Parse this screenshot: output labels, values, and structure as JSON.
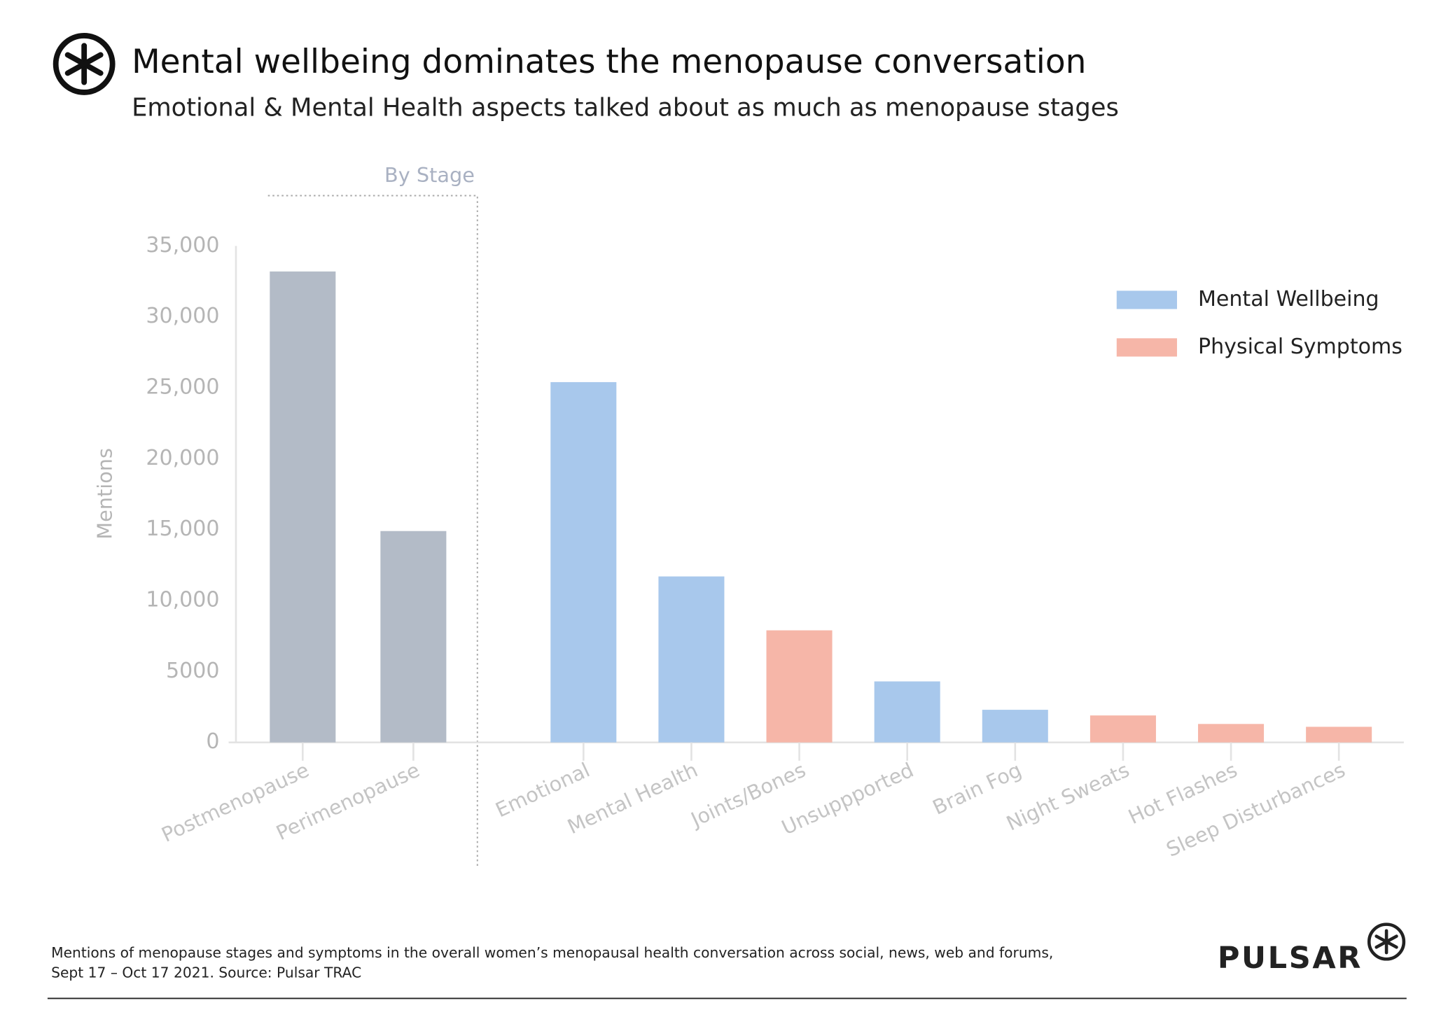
{
  "chart_data": {
    "type": "bar",
    "title": "Mental wellbeing dominates the menopause conversation",
    "subtitle": "Emotional & Mental Health aspects talked about as much as menopause stages",
    "y_label": "Mentions",
    "annotation": "By Stage",
    "categories": [
      "Postmenopause",
      "Perimenopause",
      "Emotional",
      "Mental Health",
      "Joints/Bones",
      "Unsuppported",
      "Brain Fog",
      "Night Sweats",
      "Hot Flashes",
      "Sleep Disturbances"
    ],
    "values": [
      33200,
      14900,
      25400,
      11700,
      7900,
      4300,
      2300,
      1900,
      1300,
      1100
    ],
    "colors": [
      "#b3bbc7",
      "#b3bbc7",
      "#a8c8ec",
      "#a8c8ec",
      "#f6b6a8",
      "#a8c8ec",
      "#a8c8ec",
      "#f6b6a8",
      "#f6b6a8",
      "#f6b6a8"
    ],
    "legend": [
      {
        "name": "Mental Wellbeing",
        "color": "#a8c8ec"
      },
      {
        "name": "Physical Symptoms",
        "color": "#f6b6a8"
      }
    ],
    "ylim": [
      0,
      35000
    ],
    "yticks": [
      0,
      5000,
      {
        "value": 10000,
        "label": "10,000"
      },
      {
        "value": 15000,
        "label": "15,000"
      },
      {
        "value": 20000,
        "label": "20,000"
      },
      {
        "value": 25000,
        "label": "25,000"
      },
      {
        "value": 30000,
        "label": "30,000"
      },
      {
        "value": 35000,
        "label": "35,000"
      }
    ],
    "footnote": [
      "Mentions of menopause stages and symptoms in the overall women’s menopausal health conversation across social, news, web and forums,",
      "Sept 17 – Oct 17 2021. Source: Pulsar TRAC"
    ],
    "brand": "PULSAR"
  }
}
